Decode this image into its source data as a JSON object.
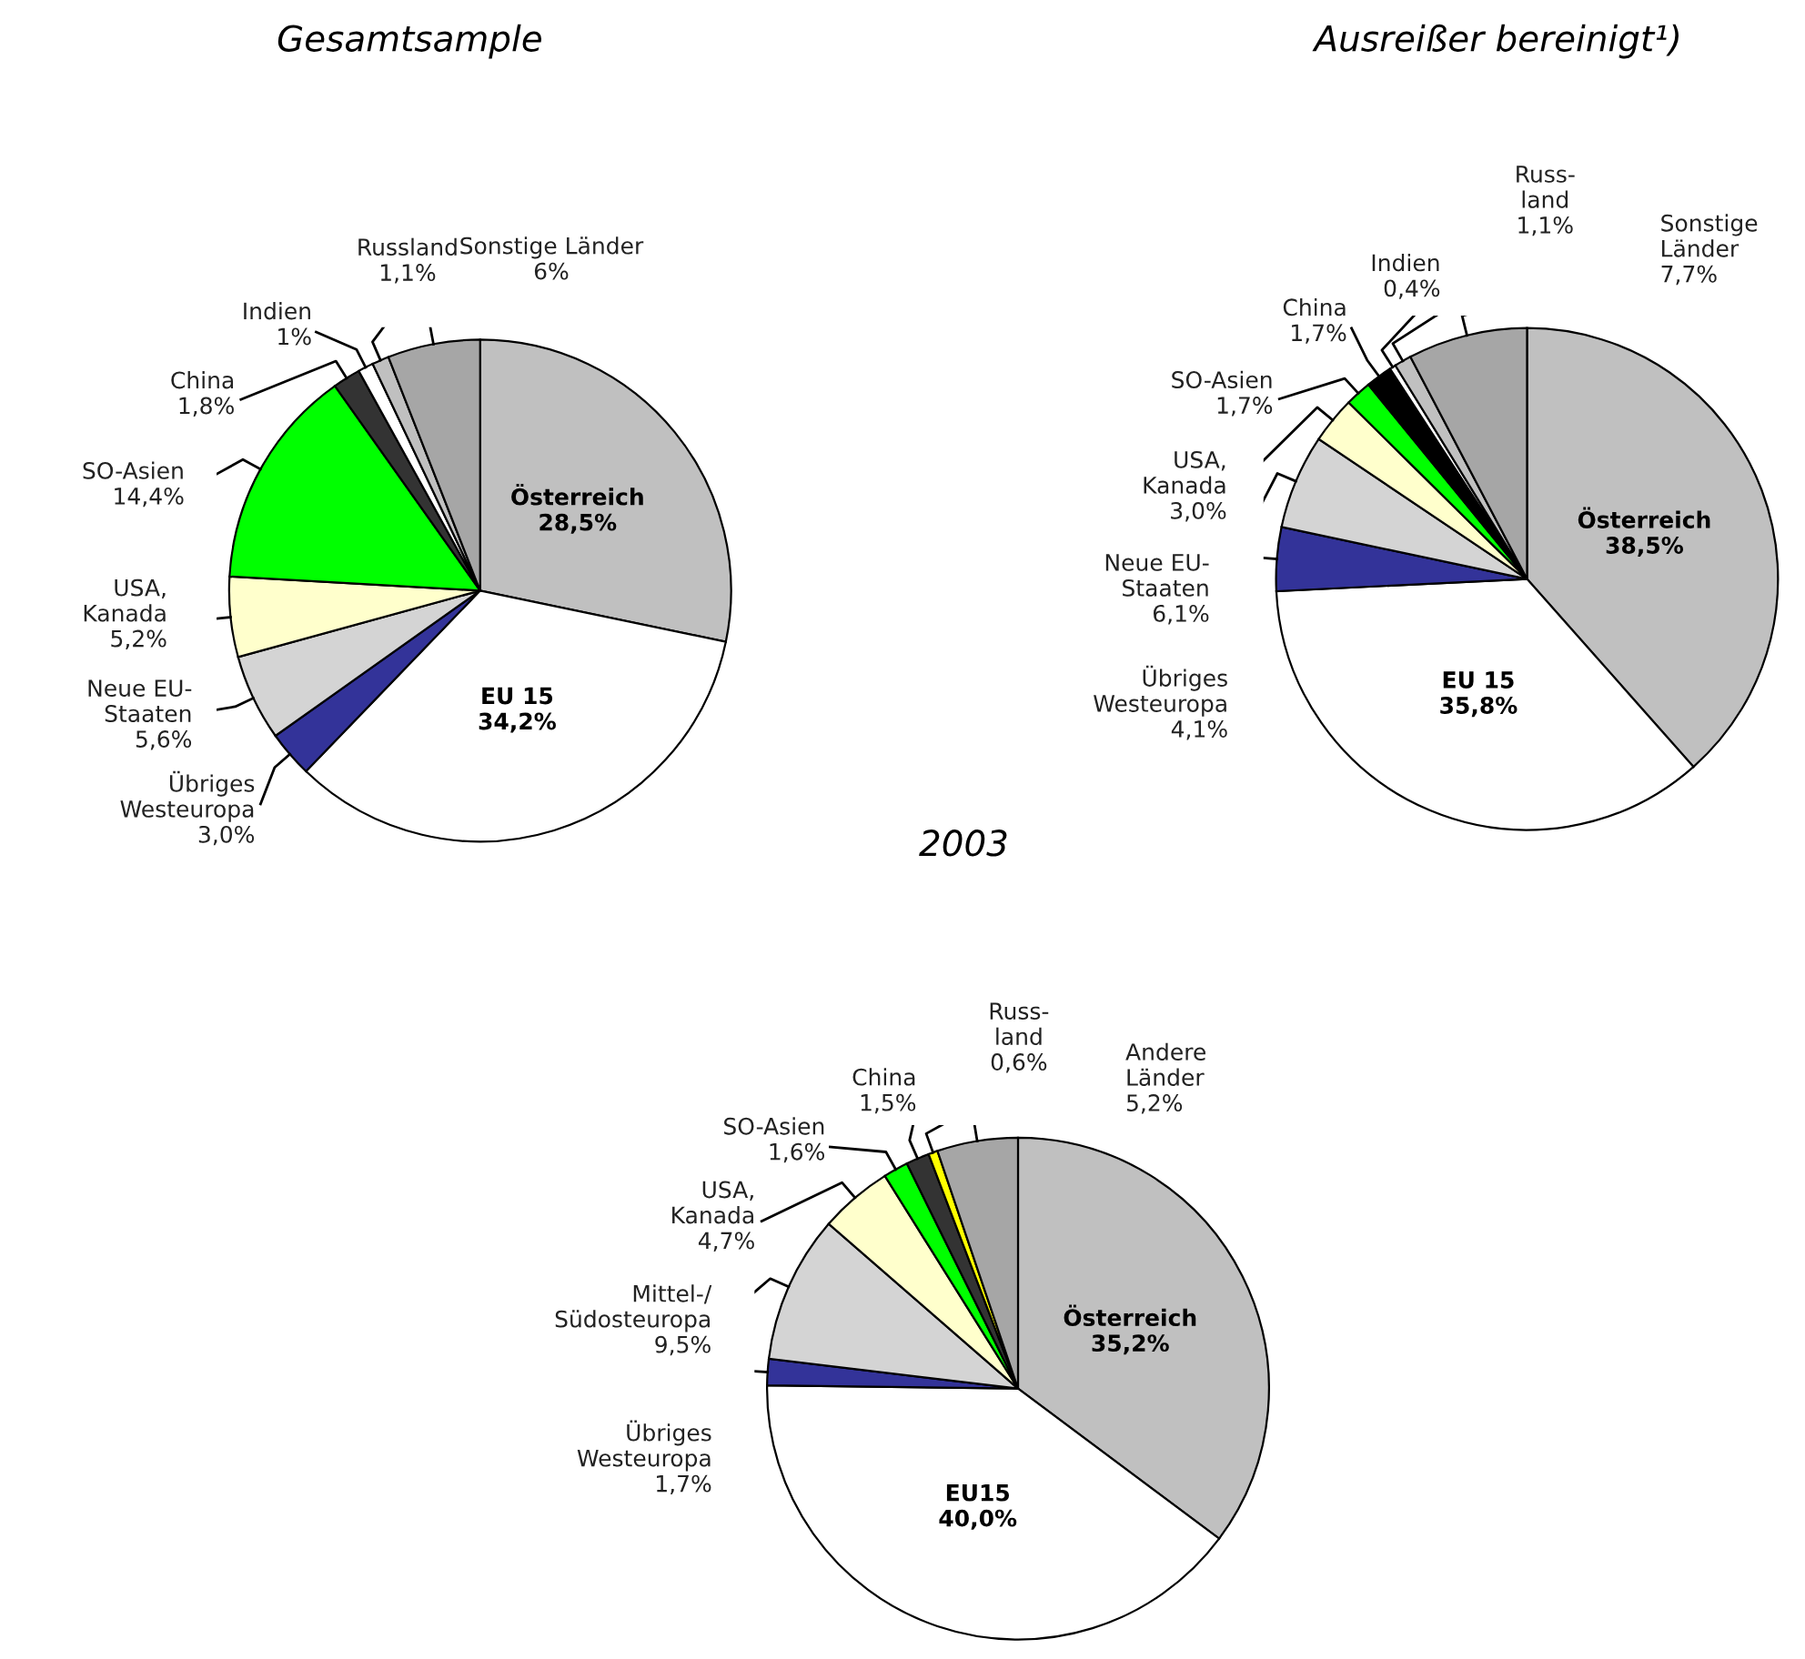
{
  "chart_data": [
    {
      "type": "pie",
      "title": "Gesamtsample",
      "categories": [
        "Österreich",
        "EU 15",
        "Übriges\nWesteuropa",
        "Neue EU-\nStaaten",
        "USA,\nKanada",
        "SO-Asien",
        "China",
        "Indien",
        "Russland",
        "Sonstige Länder"
      ],
      "values": [
        28.5,
        34.2,
        3.0,
        5.6,
        5.2,
        14.4,
        1.8,
        1,
        1.1,
        6
      ],
      "value_labels": [
        "28,5%",
        "34,2%",
        "3,0%",
        "5,6%",
        "5,2%",
        "14,4%",
        "1,8%",
        "1%",
        "1,1%",
        "6%"
      ],
      "colors": [
        "#c0c0c0",
        "#ffffff",
        "#333399",
        "#d4d4d4",
        "#ffffcc",
        "#00ff00",
        "#333333",
        "#ffffff",
        "#c0c0c0",
        "#a6a6a6"
      ]
    },
    {
      "type": "pie",
      "title": "Ausreißer bereinigt¹)",
      "categories": [
        "Österreich",
        "EU 15",
        "Übriges\nWesteuropa",
        "Neue EU-\nStaaten",
        "USA,\nKanada",
        "SO-Asien",
        "China",
        "Indien",
        "Russ-\nland",
        "Sonstige\nLänder"
      ],
      "values": [
        38.5,
        35.8,
        4.1,
        6.1,
        3.0,
        1.7,
        1.7,
        0.4,
        1.1,
        7.7
      ],
      "value_labels": [
        "38,5%",
        "35,8%",
        "4,1%",
        "6,1%",
        "3,0%",
        "1,7%",
        "1,7%",
        "0,4%",
        "1,1%",
        "7,7%"
      ],
      "colors": [
        "#c0c0c0",
        "#ffffff",
        "#333399",
        "#d4d4d4",
        "#ffffcc",
        "#00ff00",
        "#000000",
        "#ffffff",
        "#c0c0c0",
        "#a6a6a6"
      ]
    },
    {
      "type": "pie",
      "title": "2003",
      "categories": [
        "Österreich",
        "EU15",
        "Übriges\nWesteuropa",
        "Mittel-/\nSüdosteuropa",
        "USA,\nKanada",
        "SO-Asien",
        "China",
        "Russ-\nland",
        "Andere\nLänder"
      ],
      "values": [
        35.2,
        40.0,
        1.7,
        9.5,
        4.7,
        1.6,
        1.5,
        0.6,
        5.2
      ],
      "value_labels": [
        "35,2%",
        "40,0%",
        "1,7%",
        "9,5%",
        "4,7%",
        "1,6%",
        "1,5%",
        "0,6%",
        "5,2%"
      ],
      "colors": [
        "#c0c0c0",
        "#ffffff",
        "#333399",
        "#d4d4d4",
        "#ffffcc",
        "#00ff00",
        "#333333",
        "#ffff00",
        "#a6a6a6"
      ]
    }
  ]
}
